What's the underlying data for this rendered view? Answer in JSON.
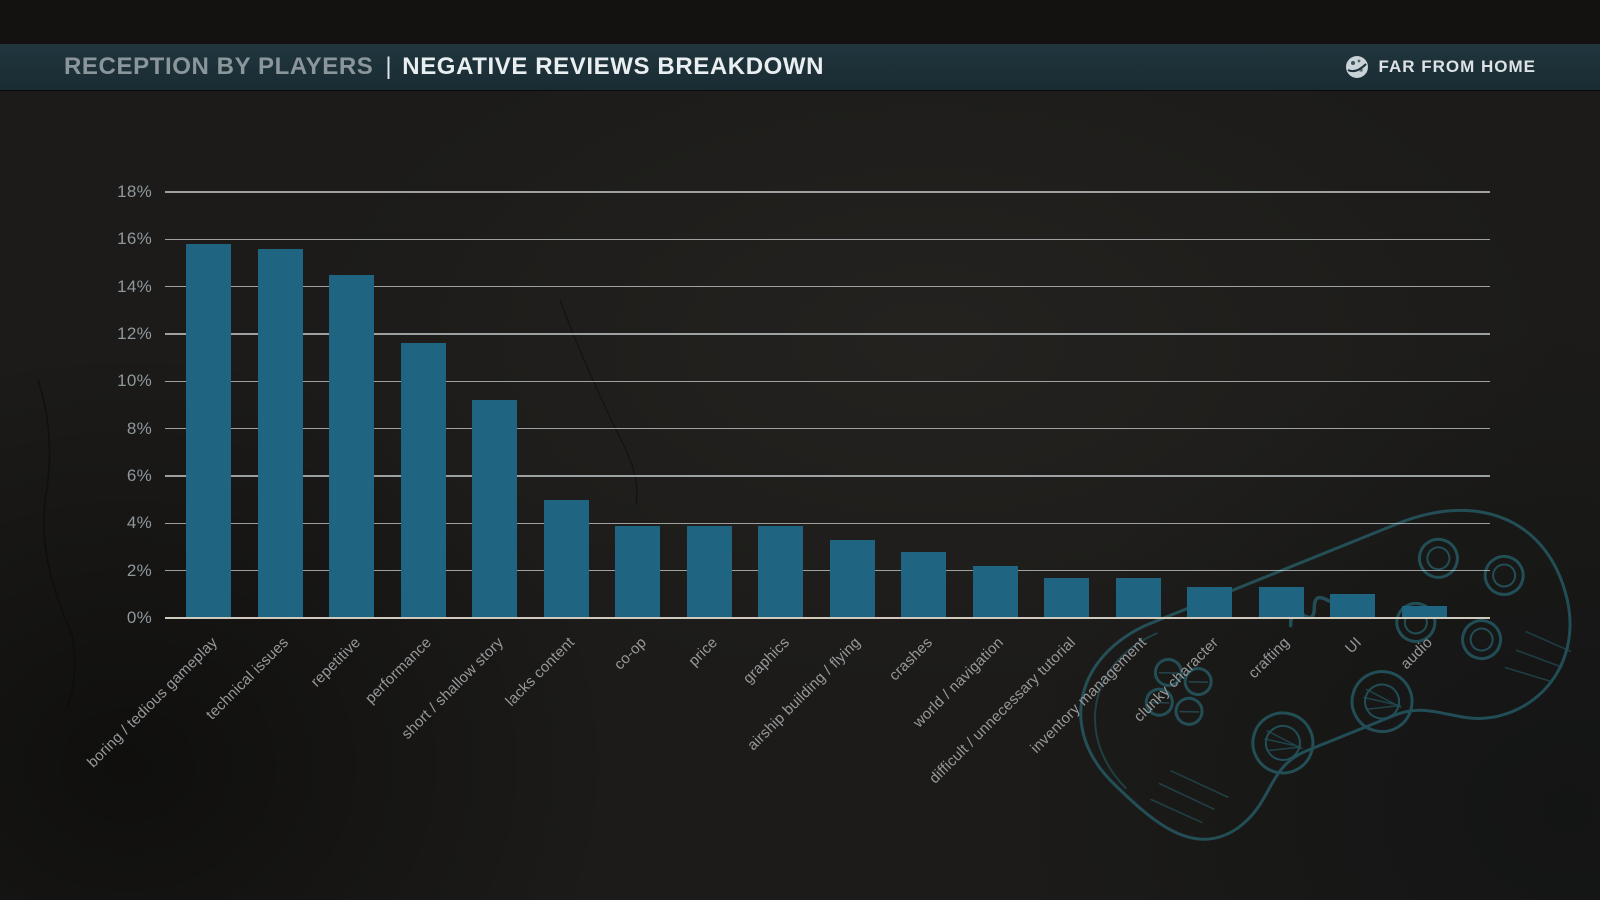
{
  "header": {
    "title_left": "RECEPTION BY PLAYERS",
    "divider": "|",
    "title_right": "NEGATIVE REVIEWS BREAKDOWN",
    "brand": "FAR FROM HOME"
  },
  "colors": {
    "bar": "#1f6480",
    "header_bg": "#1d3138",
    "grid_line": "#c9ced0",
    "zero_line": "#cfc9be",
    "axis_label": "#97999a",
    "title_muted": "#8b969b",
    "title_bright": "#e9eef0",
    "background": "#1c1b19",
    "sketch_teal": "#2e8496"
  },
  "chart_data": {
    "type": "bar",
    "title": "NEGATIVE REVIEWS BREAKDOWN",
    "categories": [
      "boring / tedious gameplay",
      "technical issues",
      "repetitive",
      "performance",
      "short / shallow story",
      "lacks content",
      "co-op",
      "price",
      "graphics",
      "airship building / flying",
      "crashes",
      "world / navigation",
      "difficult / unnecessary tutorial",
      "inventory management",
      "clunky character",
      "crafting",
      "UI",
      "audio"
    ],
    "values": [
      15.8,
      15.6,
      14.5,
      11.6,
      9.2,
      5.0,
      3.9,
      3.9,
      3.9,
      3.3,
      2.8,
      2.2,
      1.7,
      1.7,
      1.3,
      1.3,
      1.0,
      0.5
    ],
    "unit": "%",
    "xlabel": "",
    "ylabel": "",
    "ylim": [
      0,
      18
    ],
    "ytick_step": 2,
    "ytick_labels": [
      "0%",
      "2%",
      "4%",
      "6%",
      "8%",
      "10%",
      "12%",
      "14%",
      "16%",
      "18%"
    ],
    "grid": true,
    "legend": false
  }
}
